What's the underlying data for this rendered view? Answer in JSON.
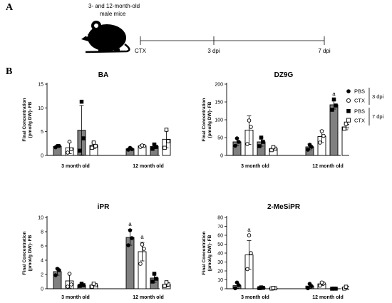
{
  "panel_labels": {
    "a": "A",
    "b": "B"
  },
  "timeline": {
    "subject_line1": "3- and 12-month-old",
    "subject_line2": "male mice",
    "points": [
      "CTX",
      "3 dpi",
      "7 dpi"
    ],
    "icon": "mouse-icon"
  },
  "legend": {
    "items": [
      {
        "label": "PBS",
        "marker": "filled-circle"
      },
      {
        "label": "CTX",
        "marker": "open-circle"
      },
      {
        "label": "PBS",
        "marker": "filled-square"
      },
      {
        "label": "CTX",
        "marker": "open-square"
      }
    ],
    "group_3": "3 dpi",
    "group_7": "7 dpi"
  },
  "colors": {
    "pbs_fill": "#808080",
    "ctx_fill": "#ffffff",
    "stroke": "#000000"
  },
  "chart_data": [
    {
      "type": "bar",
      "title": "BA",
      "ylabel_line1": "Final Concentration",
      "ylabel_line2": "(pmol/g DW)- FB",
      "ylim": [
        0,
        15
      ],
      "yticks": [
        0,
        5,
        10,
        15
      ],
      "groups": [
        "3 month old",
        "12 month old"
      ],
      "series": [
        {
          "name": "PBS",
          "dpi": "3 dpi",
          "values": [
            1.9,
            1.4
          ],
          "errors": [
            0.2,
            0.2
          ],
          "points": [
            [
              1.7,
              2.0,
              2.0
            ],
            [
              1.2,
              1.3,
              1.6
            ]
          ]
        },
        {
          "name": "CTX",
          "dpi": "3 dpi",
          "values": [
            1.6,
            2.0
          ],
          "errors": [
            1.2,
            0.3
          ],
          "points": [
            [
              0.6,
              1.3,
              2.9
            ],
            [
              1.8,
              2.0,
              2.1
            ]
          ]
        },
        {
          "name": "PBS",
          "dpi": "7 dpi",
          "values": [
            5.3,
            1.9
          ],
          "errors": [
            5.2,
            0.5
          ],
          "points": [
            [
              1.0,
              3.6,
              11.3
            ],
            [
              1.4,
              1.8,
              2.3
            ]
          ]
        },
        {
          "name": "CTX",
          "dpi": "7 dpi",
          "values": [
            2.1,
            3.4
          ],
          "errors": [
            0.7,
            1.8
          ],
          "points": [
            [
              1.6,
              2.0,
              2.7
            ],
            [
              1.6,
              3.0,
              5.4
            ]
          ]
        }
      ],
      "annotations": []
    },
    {
      "type": "bar",
      "title": "DZ9G",
      "ylabel_line1": "Final Concentration",
      "ylabel_line2": "(pmol/g DW)- FB",
      "ylim": [
        0,
        200
      ],
      "yticks": [
        0,
        50,
        100,
        150,
        200
      ],
      "groups": [
        "3 month old",
        "12 month old"
      ],
      "series": [
        {
          "name": "PBS",
          "dpi": "3 dpi",
          "values": [
            38,
            24
          ],
          "errors": [
            10,
            8
          ],
          "points": [
            [
              27,
              38,
              48
            ],
            [
              16,
              24,
              30
            ]
          ]
        },
        {
          "name": "CTX",
          "dpi": "3 dpi",
          "values": [
            71,
            53
          ],
          "errors": [
            40,
            17
          ],
          "points": [
            [
              32,
              80,
              98
            ],
            [
              36,
              55,
              68
            ]
          ]
        },
        {
          "name": "PBS",
          "dpi": "7 dpi",
          "values": [
            38,
            142
          ],
          "errors": [
            12,
            12
          ],
          "points": [
            [
              26,
              38,
              50
            ],
            [
              128,
              140,
              157
            ]
          ]
        },
        {
          "name": "CTX",
          "dpi": "7 dpi",
          "values": [
            19,
            80
          ],
          "errors": [
            4,
            8
          ],
          "points": [
            [
              15,
              19,
              23
            ],
            [
              75,
              82,
              89
            ]
          ]
        }
      ],
      "annotations": [
        {
          "text": "a",
          "group": 1,
          "series": 2
        }
      ]
    },
    {
      "type": "bar",
      "title": "iPR",
      "ylabel_line1": "Final Concentration",
      "ylabel_line2": "(pmol/g DW)- FB",
      "ylim": [
        0,
        10
      ],
      "yticks": [
        0,
        2,
        4,
        6,
        8,
        10
      ],
      "groups": [
        "3 month old",
        "12 month old"
      ],
      "series": [
        {
          "name": "PBS",
          "dpi": "3 dpi",
          "values": [
            2.4,
            7.2
          ],
          "errors": [
            0.5,
            1.1
          ],
          "points": [
            [
              1.9,
              2.6,
              2.8
            ],
            [
              6.1,
              7.1,
              8.2
            ]
          ]
        },
        {
          "name": "CTX",
          "dpi": "3 dpi",
          "values": [
            1.1,
            5.2
          ],
          "errors": [
            1.0,
            1.3
          ],
          "points": [
            [
              0.3,
              0.6,
              2.1
            ],
            [
              3.5,
              5.6,
              6.2
            ]
          ]
        },
        {
          "name": "PBS",
          "dpi": "7 dpi",
          "values": [
            0.5,
            1.5
          ],
          "errors": [
            0.2,
            0.6
          ],
          "points": [
            [
              0.4,
              0.5,
              0.7
            ],
            [
              1.0,
              1.4,
              2.1
            ]
          ]
        },
        {
          "name": "CTX",
          "dpi": "7 dpi",
          "values": [
            0.5,
            0.6
          ],
          "errors": [
            0.2,
            0.3
          ],
          "points": [
            [
              0.3,
              0.5,
              0.7
            ],
            [
              0.4,
              0.6,
              0.9
            ]
          ]
        }
      ],
      "annotations": [
        {
          "text": "a",
          "group": 1,
          "series": 0
        },
        {
          "text": "a",
          "group": 1,
          "series": 1
        }
      ]
    },
    {
      "type": "bar",
      "title": "2-MeSiPR",
      "ylabel_line1": "Final Concentration",
      "ylabel_line2": "(pmol/g DW)- FB",
      "ylim": [
        0,
        80
      ],
      "yticks": [
        0,
        10,
        20,
        30,
        40,
        50,
        60,
        70,
        80
      ],
      "groups": [
        "3 month old",
        "12 month old"
      ],
      "series": [
        {
          "name": "PBS",
          "dpi": "3 dpi",
          "values": [
            3.5,
            3.0
          ],
          "errors": [
            3.0,
            2.5
          ],
          "points": [
            [
              0.5,
              4.0,
              7.0
            ],
            [
              0.5,
              3.0,
              5.5
            ]
          ]
        },
        {
          "name": "CTX",
          "dpi": "3 dpi",
          "values": [
            38,
            5.5
          ],
          "errors": [
            16,
            2.0
          ],
          "points": [
            [
              22,
              40,
              60
            ],
            [
              3.5,
              6.0,
              7.0
            ]
          ]
        },
        {
          "name": "PBS",
          "dpi": "7 dpi",
          "values": [
            1.0,
            0.1
          ],
          "errors": [
            0.5,
            0.1
          ],
          "points": [
            [
              0.6,
              1.0,
              1.5
            ],
            [
              0.05,
              0.1,
              0.2
            ]
          ]
        },
        {
          "name": "CTX",
          "dpi": "7 dpi",
          "values": [
            0.5,
            1.0
          ],
          "errors": [
            0.4,
            0.8
          ],
          "points": [
            [
              0.2,
              0.5,
              0.9
            ],
            [
              0.2,
              0.8,
              2.2
            ]
          ]
        }
      ],
      "annotations": [
        {
          "text": "a",
          "group": 0,
          "series": 1
        }
      ]
    }
  ]
}
